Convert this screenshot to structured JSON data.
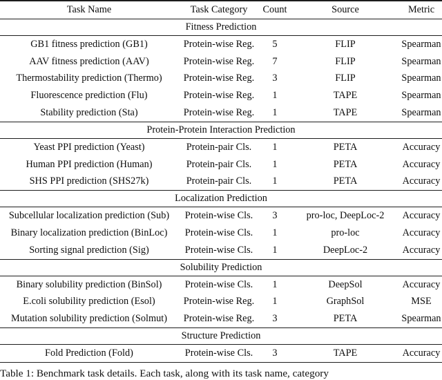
{
  "table": {
    "columns": [
      "Task Name",
      "Task Category",
      "Count",
      "Source",
      "Metric"
    ],
    "sections": [
      {
        "title": "Fitness Prediction",
        "rows": [
          {
            "task_name": "GB1 fitness prediction (GB1)",
            "task_category": "Protein-wise Reg.",
            "count": "5",
            "source": "FLIP",
            "metric": "Spearman"
          },
          {
            "task_name": "AAV fitness prediction (AAV)",
            "task_category": "Protein-wise Reg.",
            "count": "7",
            "source": "FLIP",
            "metric": "Spearman"
          },
          {
            "task_name": "Thermostability prediction (Thermo)",
            "task_category": "Protein-wise Reg.",
            "count": "3",
            "source": "FLIP",
            "metric": "Spearman"
          },
          {
            "task_name": "Fluorescence prediction (Flu)",
            "task_category": "Protein-wise Reg.",
            "count": "1",
            "source": "TAPE",
            "metric": "Spearman"
          },
          {
            "task_name": "Stability prediction (Sta)",
            "task_category": "Protein-wise Reg.",
            "count": "1",
            "source": "TAPE",
            "metric": "Spearman"
          }
        ]
      },
      {
        "title": "Protein-Protein Interaction Prediction",
        "rows": [
          {
            "task_name": "Yeast PPI prediction (Yeast)",
            "task_category": "Protein-pair Cls.",
            "count": "1",
            "source": "PETA",
            "metric": "Accuracy"
          },
          {
            "task_name": "Human PPI prediction (Human)",
            "task_category": "Protein-pair Cls.",
            "count": "1",
            "source": "PETA",
            "metric": "Accuracy"
          },
          {
            "task_name": "SHS PPI prediction (SHS27k)",
            "task_category": "Protein-pair Cls.",
            "count": "1",
            "source": "PETA",
            "metric": "Accuracy"
          }
        ]
      },
      {
        "title": "Localization Prediction",
        "rows": [
          {
            "task_name": "Subcellular localization prediction (Sub)",
            "task_category": "Protein-wise Cls.",
            "count": "3",
            "source": "pro-loc, DeepLoc-2",
            "metric": "Accuracy"
          },
          {
            "task_name": "Binary localization prediction (BinLoc)",
            "task_category": "Protein-wise Cls.",
            "count": "1",
            "source": "pro-loc",
            "metric": "Accuracy"
          },
          {
            "task_name": "Sorting signal prediction (Sig)",
            "task_category": "Protein-wise Cls.",
            "count": "1",
            "source": "DeepLoc-2",
            "metric": "Accuracy"
          }
        ]
      },
      {
        "title": "Solubility Prediction",
        "rows": [
          {
            "task_name": "Binary solubility prediction (BinSol)",
            "task_category": "Protein-wise Cls.",
            "count": "1",
            "source": "DeepSol",
            "metric": "Accuracy"
          },
          {
            "task_name": "E.coli solubility prediction (Esol)",
            "task_category": "Protein-wise Reg.",
            "count": "1",
            "source": "GraphSol",
            "metric": "MSE"
          },
          {
            "task_name": "Mutation solubility prediction (Solmut)",
            "task_category": "Protein-wise Reg.",
            "count": "3",
            "source": "PETA",
            "metric": "Spearman"
          }
        ]
      },
      {
        "title": "Structure Prediction",
        "rows": [
          {
            "task_name": "Fold Prediction (Fold)",
            "task_category": "Protein-wise Cls.",
            "count": "3",
            "source": "TAPE",
            "metric": "Accuracy"
          }
        ]
      }
    ]
  },
  "caption": "Table 1: Benchmark task details. Each task, along with its task name, category",
  "colors": {
    "background": "#ffffff",
    "text": "#0d0d0d",
    "rule": "#1c1c1c"
  }
}
